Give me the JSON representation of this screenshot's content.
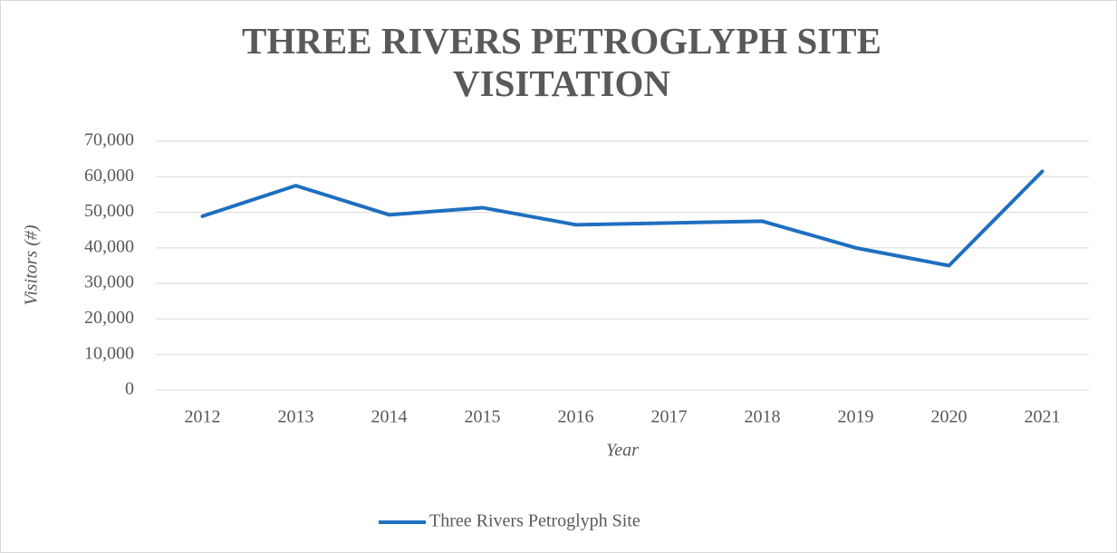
{
  "chart_data": {
    "type": "line",
    "title": "THREE RIVERS PETROGLYPH SITE VISITATION",
    "x_label": "Year",
    "y_label": "Visitors (#)",
    "categories": [
      "2012",
      "2013",
      "2014",
      "2015",
      "2016",
      "2017",
      "2018",
      "2019",
      "2020",
      "2021"
    ],
    "series": [
      {
        "name": "Three Rivers Petroglyph Site",
        "color": "#1f6fc0",
        "values": [
          48900,
          57500,
          49300,
          51300,
          46500,
          47000,
          47500,
          40000,
          35000,
          61500
        ]
      }
    ],
    "ylim": [
      0,
      70000
    ],
    "yticks": [
      0,
      {
        "value": 10000,
        "label": "10,000"
      },
      {
        "value": 20000,
        "label": "20,000"
      },
      {
        "value": 30000,
        "label": "30,000"
      },
      {
        "value": 40000,
        "label": "40,000"
      },
      {
        "value": 50000,
        "label": "50,000"
      },
      {
        "value": 60000,
        "label": "60,000"
      },
      {
        "value": 70000,
        "label": "70,000"
      }
    ],
    "grid": true,
    "legend": "bottom"
  }
}
